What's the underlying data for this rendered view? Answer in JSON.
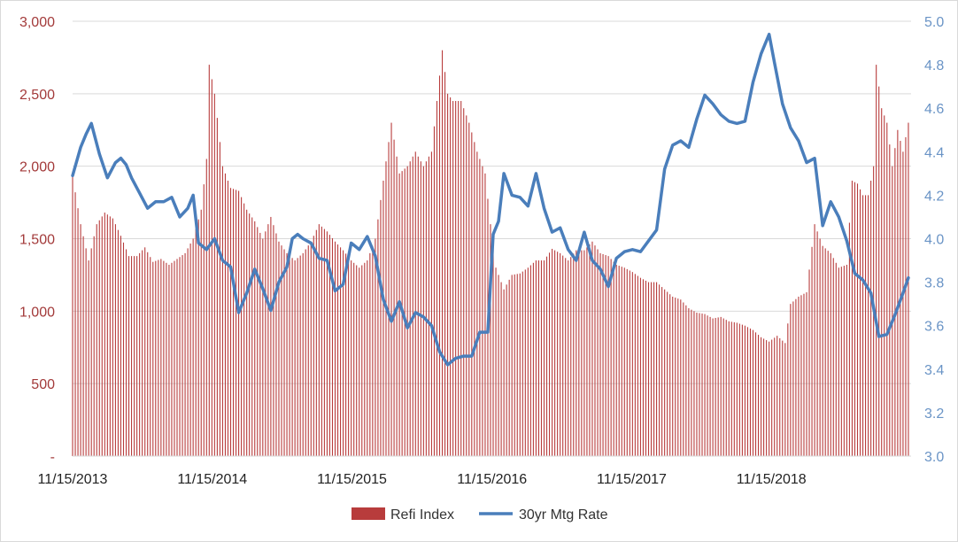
{
  "chart_data": {
    "type": "bar",
    "title": "",
    "xlabel": "",
    "ylabel": "",
    "x_axis": {
      "type": "date",
      "start": "2013-11-15",
      "end": "2019-11-15",
      "ticks": [
        "11/15/2013",
        "11/15/2014",
        "11/15/2015",
        "11/15/2016",
        "11/15/2017",
        "11/15/2018"
      ]
    },
    "y_left": {
      "range": [
        0,
        3000
      ],
      "ticks": [
        0,
        500,
        1000,
        1500,
        2000,
        2500,
        3000
      ],
      "tick_labels": [
        "-",
        "500",
        "1,000",
        "1,500",
        "2,000",
        "2,500",
        "3,000"
      ]
    },
    "y_right": {
      "range": [
        3.0,
        5.0
      ],
      "ticks": [
        3.0,
        3.2,
        3.4,
        3.6,
        3.8,
        4.0,
        4.2,
        4.4,
        4.6,
        4.8,
        5.0
      ],
      "tick_labels": [
        "3.0",
        "3.2",
        "3.4",
        "3.6",
        "3.8",
        "4.0",
        "4.2",
        "4.4",
        "4.6",
        "4.8",
        "5.0"
      ]
    },
    "grid": true,
    "legend_position": "bottom",
    "series": [
      {
        "name": "Refi Index",
        "type": "bar",
        "axis": "left",
        "color": "#b83c3c",
        "points": [
          [
            "2013-11-15",
            1930
          ],
          [
            "2013-12-06",
            1600
          ],
          [
            "2013-12-27",
            1350
          ],
          [
            "2014-01-17",
            1600
          ],
          [
            "2014-02-07",
            1680
          ],
          [
            "2014-02-28",
            1640
          ],
          [
            "2014-03-21",
            1520
          ],
          [
            "2014-04-11",
            1380
          ],
          [
            "2014-05-02",
            1380
          ],
          [
            "2014-05-23",
            1440
          ],
          [
            "2014-06-13",
            1340
          ],
          [
            "2014-07-04",
            1360
          ],
          [
            "2014-07-25",
            1320
          ],
          [
            "2014-08-15",
            1360
          ],
          [
            "2014-09-05",
            1400
          ],
          [
            "2014-09-26",
            1500
          ],
          [
            "2014-10-17",
            1700
          ],
          [
            "2014-10-31",
            2050
          ],
          [
            "2014-11-07",
            2700
          ],
          [
            "2014-11-21",
            2500
          ],
          [
            "2014-12-12",
            2000
          ],
          [
            "2015-01-02",
            1850
          ],
          [
            "2015-01-23",
            1830
          ],
          [
            "2015-02-13",
            1700
          ],
          [
            "2015-03-06",
            1620
          ],
          [
            "2015-03-27",
            1500
          ],
          [
            "2015-04-17",
            1650
          ],
          [
            "2015-05-08",
            1480
          ],
          [
            "2015-05-29",
            1400
          ],
          [
            "2015-06-19",
            1350
          ],
          [
            "2015-07-10",
            1400
          ],
          [
            "2015-07-31",
            1480
          ],
          [
            "2015-08-21",
            1600
          ],
          [
            "2015-09-11",
            1550
          ],
          [
            "2015-10-02",
            1480
          ],
          [
            "2015-10-23",
            1420
          ],
          [
            "2015-11-13",
            1350
          ],
          [
            "2015-12-04",
            1300
          ],
          [
            "2015-12-25",
            1350
          ],
          [
            "2016-01-15",
            1500
          ],
          [
            "2016-02-05",
            1900
          ],
          [
            "2016-02-26",
            2300
          ],
          [
            "2016-03-18",
            1950
          ],
          [
            "2016-04-08",
            2000
          ],
          [
            "2016-04-29",
            2100
          ],
          [
            "2016-05-20",
            2000
          ],
          [
            "2016-06-10",
            2100
          ],
          [
            "2016-06-24",
            2450
          ],
          [
            "2016-07-08",
            2800
          ],
          [
            "2016-07-22",
            2500
          ],
          [
            "2016-08-05",
            2450
          ],
          [
            "2016-08-26",
            2450
          ],
          [
            "2016-09-16",
            2300
          ],
          [
            "2016-10-07",
            2100
          ],
          [
            "2016-10-28",
            1950
          ],
          [
            "2016-11-11",
            1600
          ],
          [
            "2016-11-25",
            1300
          ],
          [
            "2016-12-16",
            1150
          ],
          [
            "2017-01-06",
            1250
          ],
          [
            "2017-01-27",
            1260
          ],
          [
            "2017-02-17",
            1300
          ],
          [
            "2017-03-10",
            1350
          ],
          [
            "2017-03-31",
            1350
          ],
          [
            "2017-04-21",
            1430
          ],
          [
            "2017-05-12",
            1400
          ],
          [
            "2017-06-02",
            1350
          ],
          [
            "2017-06-23",
            1420
          ],
          [
            "2017-07-14",
            1420
          ],
          [
            "2017-08-04",
            1480
          ],
          [
            "2017-08-25",
            1400
          ],
          [
            "2017-09-15",
            1380
          ],
          [
            "2017-10-06",
            1320
          ],
          [
            "2017-10-27",
            1300
          ],
          [
            "2017-11-17",
            1270
          ],
          [
            "2017-12-08",
            1230
          ],
          [
            "2017-12-29",
            1200
          ],
          [
            "2018-01-19",
            1200
          ],
          [
            "2018-02-09",
            1150
          ],
          [
            "2018-03-02",
            1100
          ],
          [
            "2018-03-23",
            1080
          ],
          [
            "2018-04-13",
            1020
          ],
          [
            "2018-05-04",
            990
          ],
          [
            "2018-05-25",
            980
          ],
          [
            "2018-06-15",
            950
          ],
          [
            "2018-07-06",
            960
          ],
          [
            "2018-07-27",
            930
          ],
          [
            "2018-08-17",
            920
          ],
          [
            "2018-09-07",
            900
          ],
          [
            "2018-09-28",
            870
          ],
          [
            "2018-10-19",
            820
          ],
          [
            "2018-11-09",
            790
          ],
          [
            "2018-11-30",
            830
          ],
          [
            "2018-12-21",
            780
          ],
          [
            "2019-01-04",
            1050
          ],
          [
            "2019-01-25",
            1100
          ],
          [
            "2019-02-15",
            1130
          ],
          [
            "2019-03-08",
            1600
          ],
          [
            "2019-03-29",
            1450
          ],
          [
            "2019-04-19",
            1400
          ],
          [
            "2019-05-10",
            1300
          ],
          [
            "2019-05-31",
            1320
          ],
          [
            "2019-06-14",
            1900
          ],
          [
            "2019-06-28",
            1880
          ],
          [
            "2019-07-12",
            1800
          ],
          [
            "2019-07-26",
            1800
          ],
          [
            "2019-08-09",
            2000
          ],
          [
            "2019-08-16",
            2700
          ],
          [
            "2019-08-30",
            2400
          ],
          [
            "2019-09-13",
            2300
          ],
          [
            "2019-09-27",
            2000
          ],
          [
            "2019-10-11",
            2250
          ],
          [
            "2019-10-25",
            2100
          ],
          [
            "2019-11-08",
            2300
          ]
        ]
      },
      {
        "name": "30yr Mtg Rate",
        "type": "line",
        "axis": "right",
        "color": "#4a7ebb",
        "points": [
          [
            "2013-11-15",
            4.29
          ],
          [
            "2013-12-06",
            4.42
          ],
          [
            "2013-12-20",
            4.48
          ],
          [
            "2014-01-03",
            4.53
          ],
          [
            "2014-01-24",
            4.39
          ],
          [
            "2014-02-14",
            4.28
          ],
          [
            "2014-03-07",
            4.35
          ],
          [
            "2014-03-21",
            4.37
          ],
          [
            "2014-04-04",
            4.34
          ],
          [
            "2014-04-18",
            4.28
          ],
          [
            "2014-05-09",
            4.21
          ],
          [
            "2014-05-30",
            4.14
          ],
          [
            "2014-06-20",
            4.17
          ],
          [
            "2014-07-11",
            4.17
          ],
          [
            "2014-08-01",
            4.19
          ],
          [
            "2014-08-22",
            4.1
          ],
          [
            "2014-09-12",
            4.14
          ],
          [
            "2014-09-26",
            4.2
          ],
          [
            "2014-10-10",
            3.98
          ],
          [
            "2014-10-31",
            3.95
          ],
          [
            "2014-11-21",
            4.0
          ],
          [
            "2014-12-12",
            3.9
          ],
          [
            "2015-01-02",
            3.87
          ],
          [
            "2015-01-23",
            3.66
          ],
          [
            "2015-02-13",
            3.75
          ],
          [
            "2015-03-06",
            3.86
          ],
          [
            "2015-03-27",
            3.77
          ],
          [
            "2015-04-17",
            3.67
          ],
          [
            "2015-05-08",
            3.8
          ],
          [
            "2015-05-29",
            3.87
          ],
          [
            "2015-06-12",
            4.0
          ],
          [
            "2015-06-26",
            4.02
          ],
          [
            "2015-07-10",
            4.0
          ],
          [
            "2015-07-31",
            3.98
          ],
          [
            "2015-08-21",
            3.91
          ],
          [
            "2015-09-11",
            3.9
          ],
          [
            "2015-10-02",
            3.76
          ],
          [
            "2015-10-23",
            3.79
          ],
          [
            "2015-11-13",
            3.98
          ],
          [
            "2015-12-04",
            3.95
          ],
          [
            "2015-12-25",
            4.01
          ],
          [
            "2016-01-15",
            3.92
          ],
          [
            "2016-02-05",
            3.72
          ],
          [
            "2016-02-26",
            3.62
          ],
          [
            "2016-03-18",
            3.71
          ],
          [
            "2016-04-08",
            3.59
          ],
          [
            "2016-04-29",
            3.66
          ],
          [
            "2016-05-20",
            3.64
          ],
          [
            "2016-06-10",
            3.6
          ],
          [
            "2016-07-01",
            3.48
          ],
          [
            "2016-07-22",
            3.42
          ],
          [
            "2016-08-12",
            3.45
          ],
          [
            "2016-09-02",
            3.46
          ],
          [
            "2016-09-23",
            3.46
          ],
          [
            "2016-10-14",
            3.57
          ],
          [
            "2016-11-04",
            3.57
          ],
          [
            "2016-11-18",
            4.02
          ],
          [
            "2016-12-02",
            4.08
          ],
          [
            "2016-12-16",
            4.3
          ],
          [
            "2017-01-06",
            4.2
          ],
          [
            "2017-01-27",
            4.19
          ],
          [
            "2017-02-17",
            4.15
          ],
          [
            "2017-03-10",
            4.3
          ],
          [
            "2017-03-31",
            4.14
          ],
          [
            "2017-04-21",
            4.03
          ],
          [
            "2017-05-12",
            4.05
          ],
          [
            "2017-06-02",
            3.95
          ],
          [
            "2017-06-23",
            3.9
          ],
          [
            "2017-07-14",
            4.03
          ],
          [
            "2017-08-04",
            3.9
          ],
          [
            "2017-08-25",
            3.86
          ],
          [
            "2017-09-15",
            3.78
          ],
          [
            "2017-10-06",
            3.91
          ],
          [
            "2017-10-27",
            3.94
          ],
          [
            "2017-11-17",
            3.95
          ],
          [
            "2017-12-08",
            3.94
          ],
          [
            "2017-12-29",
            3.99
          ],
          [
            "2018-01-19",
            4.04
          ],
          [
            "2018-02-09",
            4.32
          ],
          [
            "2018-03-02",
            4.43
          ],
          [
            "2018-03-23",
            4.45
          ],
          [
            "2018-04-13",
            4.42
          ],
          [
            "2018-05-04",
            4.55
          ],
          [
            "2018-05-25",
            4.66
          ],
          [
            "2018-06-15",
            4.62
          ],
          [
            "2018-07-06",
            4.57
          ],
          [
            "2018-07-27",
            4.54
          ],
          [
            "2018-08-17",
            4.53
          ],
          [
            "2018-09-07",
            4.54
          ],
          [
            "2018-09-28",
            4.72
          ],
          [
            "2018-10-19",
            4.85
          ],
          [
            "2018-11-09",
            4.94
          ],
          [
            "2018-11-23",
            4.81
          ],
          [
            "2018-12-14",
            4.62
          ],
          [
            "2019-01-04",
            4.51
          ],
          [
            "2019-01-25",
            4.45
          ],
          [
            "2019-02-15",
            4.35
          ],
          [
            "2019-03-08",
            4.37
          ],
          [
            "2019-03-29",
            4.06
          ],
          [
            "2019-04-19",
            4.17
          ],
          [
            "2019-05-10",
            4.1
          ],
          [
            "2019-05-31",
            3.99
          ],
          [
            "2019-06-21",
            3.84
          ],
          [
            "2019-07-12",
            3.81
          ],
          [
            "2019-08-02",
            3.75
          ],
          [
            "2019-08-23",
            3.55
          ],
          [
            "2019-09-13",
            3.56
          ],
          [
            "2019-10-04",
            3.65
          ],
          [
            "2019-10-25",
            3.75
          ],
          [
            "2019-11-08",
            3.82
          ]
        ]
      }
    ]
  }
}
